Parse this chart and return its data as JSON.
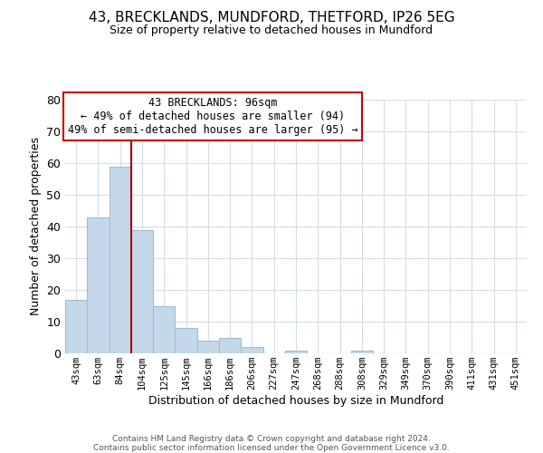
{
  "title1": "43, BRECKLANDS, MUNDFORD, THETFORD, IP26 5EG",
  "title2": "Size of property relative to detached houses in Mundford",
  "xlabel": "Distribution of detached houses by size in Mundford",
  "ylabel": "Number of detached properties",
  "bar_labels": [
    "43sqm",
    "63sqm",
    "84sqm",
    "104sqm",
    "125sqm",
    "145sqm",
    "166sqm",
    "186sqm",
    "206sqm",
    "227sqm",
    "247sqm",
    "268sqm",
    "288sqm",
    "308sqm",
    "329sqm",
    "349sqm",
    "370sqm",
    "390sqm",
    "411sqm",
    "431sqm",
    "451sqm"
  ],
  "bar_values": [
    17,
    43,
    59,
    39,
    15,
    8,
    4,
    5,
    2,
    0,
    1,
    0,
    0,
    1,
    0,
    0,
    0,
    0,
    0,
    0,
    0
  ],
  "bar_color": "#c5d8ea",
  "bar_edge_color": "#a0bcd4",
  "vline_color": "#aa0000",
  "ylim": [
    0,
    80
  ],
  "yticks": [
    0,
    10,
    20,
    30,
    40,
    50,
    60,
    70,
    80
  ],
  "annotation_title": "43 BRECKLANDS: 96sqm",
  "annotation_line1": "← 49% of detached houses are smaller (94)",
  "annotation_line2": "49% of semi-detached houses are larger (95) →",
  "annotation_box_edge": "#cc0000",
  "footer1": "Contains HM Land Registry data © Crown copyright and database right 2024.",
  "footer2": "Contains public sector information licensed under the Open Government Licence v3.0.",
  "bg_color": "#ffffff",
  "grid_color": "#d4dde6"
}
